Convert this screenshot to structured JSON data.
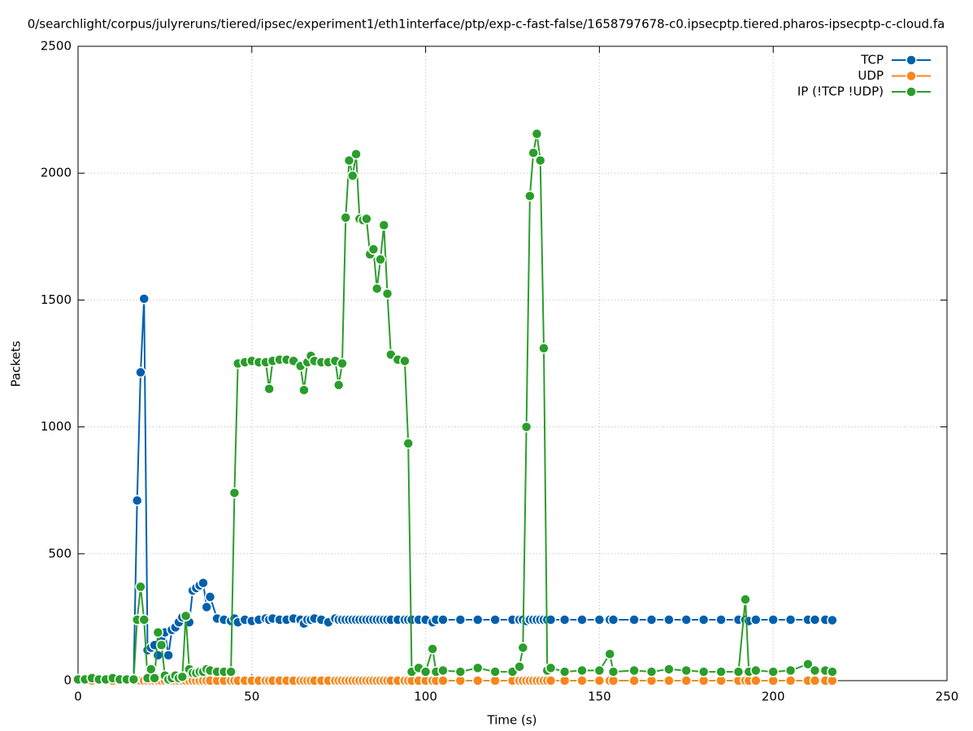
{
  "chart_data": {
    "type": "line",
    "title": "0/searchlight/corpus/julyreruns/tiered/ipsec/experiment1/eth1interface/ptp/exp-c-fast-false/1658797678-c0.ipsecptp.tiered.pharos-ipsecptp-c-cloud.fa",
    "x_label": "Time (s)",
    "y_label": "Packets",
    "xlim": [
      0,
      250
    ],
    "xticks": [
      0,
      50,
      100,
      150,
      200,
      250
    ],
    "ylim": [
      0,
      2500
    ],
    "yticks": [
      0,
      500,
      1000,
      1500,
      2000,
      2500
    ],
    "grid": true,
    "legend": "top-right",
    "x": [
      0,
      2,
      4,
      6,
      8,
      10,
      12,
      14,
      16,
      17,
      18,
      19,
      20,
      21,
      22,
      23,
      24,
      25,
      26,
      27,
      28,
      29,
      30,
      31,
      32,
      33,
      34,
      35,
      36,
      37,
      38,
      40,
      42,
      44,
      45,
      46,
      48,
      50,
      52,
      54,
      55,
      56,
      58,
      60,
      62,
      64,
      65,
      66,
      67,
      68,
      70,
      72,
      74,
      75,
      76,
      77,
      78,
      79,
      80,
      81,
      82,
      83,
      84,
      85,
      86,
      87,
      88,
      89,
      90,
      92,
      94,
      95,
      96,
      98,
      100,
      102,
      103,
      105,
      110,
      115,
      120,
      125,
      127,
      128,
      129,
      130,
      131,
      132,
      133,
      134,
      135,
      136,
      140,
      145,
      150,
      153,
      154,
      160,
      165,
      170,
      175,
      180,
      185,
      190,
      192,
      193,
      195,
      200,
      205,
      210,
      212,
      215,
      217
    ],
    "series": [
      {
        "name": "TCP",
        "color": "#0060ad",
        "values": [
          0,
          0,
          0,
          0,
          0,
          5,
          5,
          5,
          10,
          710,
          1215,
          1505,
          120,
          130,
          140,
          100,
          170,
          190,
          100,
          200,
          210,
          230,
          250,
          260,
          230,
          355,
          365,
          375,
          385,
          290,
          330,
          245,
          240,
          235,
          245,
          230,
          240,
          235,
          240,
          245,
          240,
          245,
          240,
          240,
          245,
          240,
          225,
          240,
          240,
          245,
          240,
          230,
          245,
          240,
          240,
          240,
          240,
          240,
          240,
          240,
          240,
          240,
          240,
          240,
          240,
          240,
          240,
          240,
          240,
          240,
          240,
          240,
          240,
          240,
          240,
          230,
          240,
          240,
          240,
          240,
          240,
          240,
          240,
          240,
          235,
          240,
          240,
          240,
          240,
          240,
          240,
          240,
          240,
          240,
          240,
          240,
          240,
          240,
          240,
          240,
          240,
          240,
          240,
          240,
          240,
          235,
          240,
          240,
          240,
          240,
          240,
          240,
          238
        ]
      },
      {
        "name": "UDP",
        "color": "#f7861c",
        "values": [
          0,
          0,
          0,
          0,
          0,
          0,
          0,
          0,
          0,
          0,
          0,
          0,
          0,
          0,
          0,
          0,
          0,
          0,
          0,
          0,
          0,
          0,
          0,
          0,
          0,
          0,
          0,
          0,
          0,
          0,
          0,
          0,
          0,
          0,
          0,
          0,
          0,
          0,
          0,
          0,
          0,
          0,
          0,
          0,
          0,
          0,
          0,
          0,
          0,
          0,
          0,
          0,
          0,
          0,
          0,
          0,
          0,
          0,
          0,
          0,
          0,
          0,
          0,
          0,
          0,
          0,
          0,
          0,
          0,
          0,
          0,
          0,
          0,
          0,
          0,
          0,
          0,
          0,
          0,
          0,
          0,
          0,
          0,
          0,
          0,
          0,
          0,
          0,
          0,
          0,
          0,
          0,
          0,
          0,
          0,
          0,
          0,
          0,
          0,
          0,
          0,
          0,
          0,
          0,
          0,
          0,
          0,
          0,
          0,
          0,
          0,
          0,
          0
        ]
      },
      {
        "name": "IP (!TCP  !UDP)",
        "color": "#2a9d2a",
        "values": [
          5,
          5,
          10,
          5,
          5,
          10,
          5,
          5,
          5,
          240,
          370,
          240,
          10,
          45,
          10,
          190,
          140,
          20,
          5,
          10,
          20,
          10,
          15,
          255,
          45,
          30,
          30,
          35,
          35,
          45,
          40,
          35,
          35,
          35,
          740,
          1250,
          1255,
          1260,
          1255,
          1255,
          1150,
          1260,
          1265,
          1265,
          1260,
          1240,
          1145,
          1255,
          1280,
          1260,
          1255,
          1255,
          1260,
          1165,
          1250,
          1825,
          2050,
          1990,
          2075,
          1820,
          1815,
          1820,
          1680,
          1700,
          1545,
          1660,
          1795,
          1525,
          1285,
          1265,
          1260,
          935,
          35,
          50,
          35,
          125,
          35,
          40,
          35,
          50,
          35,
          35,
          55,
          130,
          1000,
          1910,
          2080,
          2155,
          2050,
          1310,
          40,
          50,
          35,
          40,
          40,
          105,
          35,
          40,
          35,
          45,
          40,
          35,
          35,
          35,
          320,
          35,
          40,
          35,
          40,
          65,
          40,
          40,
          35
        ]
      }
    ]
  }
}
